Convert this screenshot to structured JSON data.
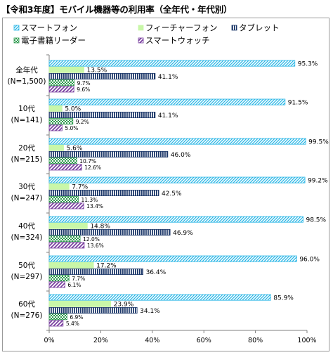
{
  "title": "【令和3年度】モバイル機器等の利用率（全年代・年代別）",
  "chart_data": {
    "type": "bar",
    "orientation": "horizontal",
    "title": "【令和3年度】モバイル機器等の利用率（全年代・年代別）",
    "categories": [
      {
        "name": "全年代",
        "sample": "(N=1,500)"
      },
      {
        "name": "10代",
        "sample": "(N=141)"
      },
      {
        "name": "20代",
        "sample": "(N=215)"
      },
      {
        "name": "30代",
        "sample": "(N=247)"
      },
      {
        "name": "40代",
        "sample": "(N=324)"
      },
      {
        "name": "50代",
        "sample": "(N=297)"
      },
      {
        "name": "60代",
        "sample": "(N=276)"
      }
    ],
    "series": [
      {
        "name": "スマートフォン",
        "color": "#29b6e6",
        "pattern": "diagonal-hatch",
        "values": [
          95.3,
          91.5,
          99.5,
          99.2,
          98.5,
          96.0,
          85.9
        ]
      },
      {
        "name": "フィーチャーフォン",
        "color": "#c9f7a8",
        "pattern": "solid",
        "values": [
          13.5,
          5.0,
          5.6,
          7.7,
          14.8,
          17.2,
          23.9
        ]
      },
      {
        "name": "タブレット",
        "color": "#1f3a6b",
        "pattern": "vertical-stripes",
        "values": [
          41.1,
          41.1,
          46.0,
          42.5,
          46.9,
          36.4,
          34.1
        ]
      },
      {
        "name": "電子書籍リーダー",
        "color": "#2e9a4e",
        "pattern": "checker",
        "values": [
          9.7,
          9.2,
          10.7,
          11.3,
          12.0,
          7.7,
          6.9
        ]
      },
      {
        "name": "スマートウォッチ",
        "color": "#7a3fa0",
        "pattern": "diagonal-stripes",
        "values": [
          9.6,
          5.0,
          12.6,
          13.4,
          13.6,
          6.1,
          5.4
        ]
      }
    ],
    "value_unit": "%",
    "xlim": [
      0,
      100
    ],
    "xticks": [
      "0%",
      "20%",
      "40%",
      "60%",
      "80%",
      "100%"
    ],
    "grid": false,
    "legend_position": "top-left"
  }
}
